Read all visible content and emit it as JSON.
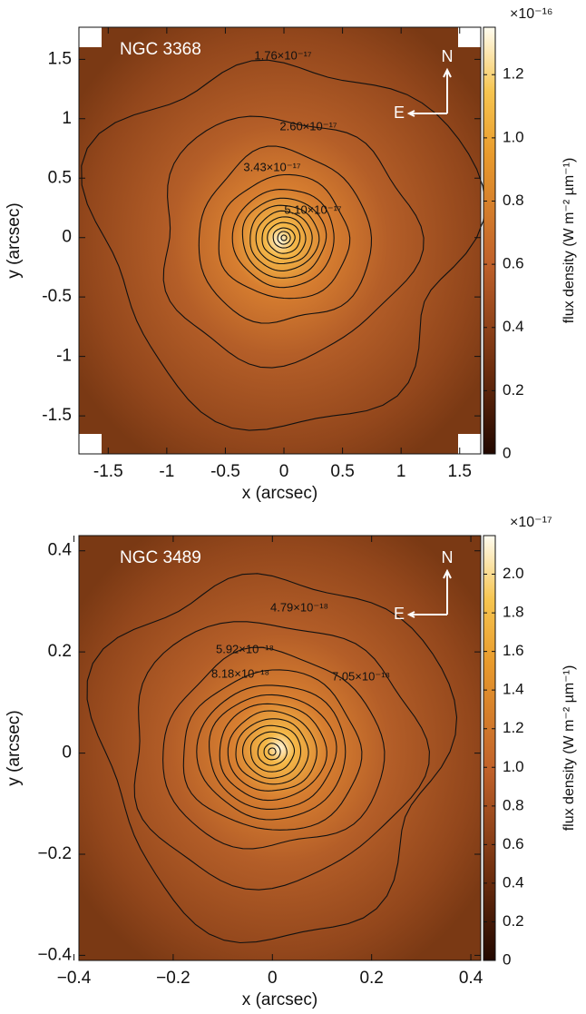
{
  "chart_data": [
    {
      "type": "contour",
      "title": "NGC 3368",
      "xlabel": "x (arcsec)",
      "ylabel": "y (arcsec)",
      "xlim": [
        -1.75,
        1.68
      ],
      "ylim": [
        -1.82,
        1.77
      ],
      "xticks": [
        -1.5,
        -1,
        -0.5,
        0,
        0.5,
        1,
        1.5
      ],
      "yticks": [
        -1.5,
        -1,
        -0.5,
        0,
        0.5,
        1,
        1.5
      ],
      "contour_levels": [
        {
          "value": 1.76e-17,
          "label": "1.76×10⁻¹⁷"
        },
        {
          "value": 2.6e-17,
          "label": "2.60×10⁻¹⁷"
        },
        {
          "value": 3.43e-17,
          "label": "3.43×10⁻¹⁷"
        },
        {
          "value": 5.1e-17,
          "label": "5.10×10⁻¹⁷"
        }
      ],
      "compass": {
        "north": "N",
        "east": "E"
      },
      "colorbar_label": "flux density (W m⁻² µm⁻¹)",
      "colorbar_scale": "×10⁻¹⁶",
      "clim": [
        0,
        1.35
      ],
      "cticks": [
        0,
        0.2,
        0.4,
        0.6,
        0.8,
        {
          "value": 1,
          "label": "1.0"
        },
        1.2
      ]
    },
    {
      "type": "contour",
      "title": "NGC 3489",
      "xlabel": "x (arcsec)",
      "ylabel": "y (arcsec)",
      "xlim": [
        -0.39,
        0.42
      ],
      "ylim": [
        -0.41,
        0.43
      ],
      "xticks": [
        {
          "value": -0.4,
          "label": "−0.4"
        },
        {
          "value": -0.2,
          "label": "−0.2"
        },
        0,
        0.2,
        0.4
      ],
      "yticks": [
        {
          "value": -0.4,
          "label": "−0.4"
        },
        {
          "value": -0.2,
          "label": "−0.2"
        },
        0,
        0.2,
        0.4
      ],
      "contour_levels": [
        {
          "value": 4.79e-18,
          "label": "4.79×10⁻¹⁸"
        },
        {
          "value": 5.92e-18,
          "label": "5.92×10⁻¹⁸"
        },
        {
          "value": 7.05e-18,
          "label": "7.05×10⁻¹⁸"
        },
        {
          "value": 8.18e-18,
          "label": "8.18×10⁻¹⁸"
        }
      ],
      "compass": {
        "north": "N",
        "east": "E"
      },
      "colorbar_label": "flux density (W m⁻² µm⁻¹)",
      "colorbar_scale": "×10⁻¹⁷",
      "clim": [
        0,
        2.2
      ],
      "cticks": [
        0,
        0.2,
        0.4,
        0.6,
        0.8,
        {
          "value": 1,
          "label": "1.0"
        },
        1.2,
        1.4,
        1.6,
        1.8,
        {
          "value": 2,
          "label": "2.0"
        }
      ]
    }
  ]
}
